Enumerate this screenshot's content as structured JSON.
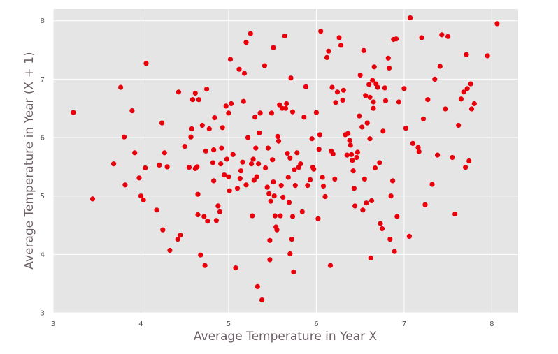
{
  "chart_data": {
    "type": "scatter",
    "xlabel": "Average Temperature in Year X",
    "ylabel": "Average Temperature in Year (X + 1)",
    "xlim": [
      3,
      8.3
    ],
    "ylim": [
      3,
      8.2
    ],
    "xticks": [
      "3",
      "4",
      "5",
      "6",
      "7",
      "8"
    ],
    "yticks": [
      "3",
      "4",
      "5",
      "6",
      "7",
      "8"
    ],
    "grid": true,
    "background_color": "#e5e5e5",
    "grid_color": "#ffffff",
    "marker_color": "#e8000b",
    "series": [
      {
        "points": [
          [
            3.23,
            6.43
          ],
          [
            3.45,
            4.95
          ],
          [
            3.69,
            5.55
          ],
          [
            3.77,
            6.86
          ],
          [
            3.81,
            6.01
          ],
          [
            3.82,
            5.19
          ],
          [
            3.9,
            6.46
          ],
          [
            3.93,
            5.74
          ],
          [
            3.98,
            5.31
          ],
          [
            4.0,
            5.0
          ],
          [
            4.03,
            4.93
          ],
          [
            4.05,
            5.48
          ],
          [
            4.06,
            7.27
          ],
          [
            4.18,
            4.76
          ],
          [
            4.21,
            5.53
          ],
          [
            4.24,
            6.25
          ],
          [
            4.25,
            4.42
          ],
          [
            4.27,
            5.74
          ],
          [
            4.3,
            5.5
          ],
          [
            4.33,
            4.07
          ],
          [
            4.42,
            4.26
          ],
          [
            4.43,
            6.78
          ],
          [
            4.45,
            4.33
          ],
          [
            4.5,
            5.85
          ],
          [
            4.55,
            5.49
          ],
          [
            4.57,
            6.01
          ],
          [
            4.58,
            6.15
          ],
          [
            4.59,
            6.65
          ],
          [
            4.62,
            5.47
          ],
          [
            4.62,
            6.76
          ],
          [
            4.64,
            5.5
          ],
          [
            4.65,
            5.03
          ],
          [
            4.65,
            4.68
          ],
          [
            4.66,
            6.65
          ],
          [
            4.68,
            3.99
          ],
          [
            4.7,
            6.21
          ],
          [
            4.72,
            4.65
          ],
          [
            4.73,
            3.81
          ],
          [
            4.74,
            5.77
          ],
          [
            4.75,
            6.83
          ],
          [
            4.76,
            4.57
          ],
          [
            4.78,
            6.15
          ],
          [
            4.82,
            5.57
          ],
          [
            4.83,
            5.79
          ],
          [
            4.83,
            5.26
          ],
          [
            4.84,
            6.34
          ],
          [
            4.86,
            4.58
          ],
          [
            4.88,
            4.83
          ],
          [
            4.9,
            4.73
          ],
          [
            4.91,
            5.55
          ],
          [
            4.92,
            5.82
          ],
          [
            4.93,
            6.17
          ],
          [
            4.95,
            5.36
          ],
          [
            4.97,
            6.54
          ],
          [
            4.98,
            5.63
          ],
          [
            5.0,
            6.42
          ],
          [
            5.0,
            5.33
          ],
          [
            5.01,
            5.09
          ],
          [
            5.02,
            7.34
          ],
          [
            5.03,
            6.58
          ],
          [
            5.05,
            5.71
          ],
          [
            5.08,
            3.77
          ],
          [
            5.1,
            5.13
          ],
          [
            5.12,
            7.17
          ],
          [
            5.13,
            5.3
          ],
          [
            5.14,
            5.43
          ],
          [
            5.16,
            5.58
          ],
          [
            5.17,
            6.62
          ],
          [
            5.18,
            7.1
          ],
          [
            5.2,
            7.63
          ],
          [
            5.2,
            5.19
          ],
          [
            5.22,
            6.0
          ],
          [
            5.25,
            7.78
          ],
          [
            5.26,
            5.55
          ],
          [
            5.27,
            4.66
          ],
          [
            5.28,
            5.63
          ],
          [
            5.29,
            5.27
          ],
          [
            5.3,
            6.35
          ],
          [
            5.31,
            5.82
          ],
          [
            5.32,
            5.33
          ],
          [
            5.33,
            3.45
          ],
          [
            5.34,
            5.55
          ],
          [
            5.35,
            6.08
          ],
          [
            5.36,
            6.42
          ],
          [
            5.38,
            3.22
          ],
          [
            5.41,
            7.23
          ],
          [
            5.42,
            5.48
          ],
          [
            5.44,
            5.15
          ],
          [
            5.45,
            5.82
          ],
          [
            5.46,
            5.04
          ],
          [
            5.47,
            4.24
          ],
          [
            5.47,
            3.91
          ],
          [
            5.48,
            4.91
          ],
          [
            5.49,
            6.42
          ],
          [
            5.5,
            5.62
          ],
          [
            5.51,
            5.24
          ],
          [
            5.51,
            7.54
          ],
          [
            5.52,
            5.0
          ],
          [
            5.53,
            4.66
          ],
          [
            5.54,
            4.47
          ],
          [
            5.55,
            4.42
          ],
          [
            5.56,
            6.02
          ],
          [
            5.57,
            5.94
          ],
          [
            5.58,
            6.56
          ],
          [
            5.59,
            4.66
          ],
          [
            5.6,
            5.18
          ],
          [
            5.61,
            6.5
          ],
          [
            5.62,
            4.98
          ],
          [
            5.64,
            7.74
          ],
          [
            5.65,
            6.5
          ],
          [
            5.66,
            6.58
          ],
          [
            5.67,
            5.73
          ],
          [
            5.68,
            5.32
          ],
          [
            5.69,
            4.89
          ],
          [
            5.7,
            4.01
          ],
          [
            5.7,
            5.65
          ],
          [
            5.71,
            7.02
          ],
          [
            5.72,
            4.26
          ],
          [
            5.73,
            6.44
          ],
          [
            5.73,
            4.65
          ],
          [
            5.74,
            3.7
          ],
          [
            5.75,
            5.45
          ],
          [
            5.76,
            5.18
          ],
          [
            5.78,
            5.74
          ],
          [
            5.8,
            5.49
          ],
          [
            5.82,
            5.55
          ],
          [
            5.84,
            4.73
          ],
          [
            5.86,
            6.35
          ],
          [
            5.88,
            6.87
          ],
          [
            5.9,
            5.18
          ],
          [
            5.93,
            5.28
          ],
          [
            5.95,
            5.98
          ],
          [
            5.96,
            5.49
          ],
          [
            5.97,
            5.46
          ],
          [
            6.0,
            6.43
          ],
          [
            6.02,
            4.61
          ],
          [
            6.03,
            5.8
          ],
          [
            6.04,
            6.05
          ],
          [
            6.05,
            7.82
          ],
          [
            6.07,
            5.32
          ],
          [
            6.08,
            5.17
          ],
          [
            6.1,
            4.99
          ],
          [
            6.12,
            7.37
          ],
          [
            6.14,
            7.48
          ],
          [
            6.16,
            3.81
          ],
          [
            6.17,
            5.77
          ],
          [
            6.18,
            6.86
          ],
          [
            6.19,
            5.72
          ],
          [
            6.21,
            5.29
          ],
          [
            6.22,
            6.6
          ],
          [
            6.24,
            6.78
          ],
          [
            6.26,
            7.71
          ],
          [
            6.28,
            7.58
          ],
          [
            6.3,
            6.64
          ],
          [
            6.31,
            6.81
          ],
          [
            6.33,
            6.05
          ],
          [
            6.35,
            5.7
          ],
          [
            6.36,
            6.07
          ],
          [
            6.38,
            5.95
          ],
          [
            6.39,
            5.87
          ],
          [
            6.4,
            5.71
          ],
          [
            6.41,
            5.61
          ],
          [
            6.42,
            5.43
          ],
          [
            6.43,
            5.13
          ],
          [
            6.44,
            4.83
          ],
          [
            6.46,
            5.66
          ],
          [
            6.47,
            5.75
          ],
          [
            6.49,
            6.37
          ],
          [
            6.5,
            7.07
          ],
          [
            6.52,
            6.18
          ],
          [
            6.53,
            4.76
          ],
          [
            6.54,
            7.49
          ],
          [
            6.55,
            5.29
          ],
          [
            6.56,
            6.72
          ],
          [
            6.57,
            4.88
          ],
          [
            6.58,
            6.25
          ],
          [
            6.6,
            6.91
          ],
          [
            6.61,
            6.69
          ],
          [
            6.61,
            5.98
          ],
          [
            6.62,
            3.94
          ],
          [
            6.63,
            4.92
          ],
          [
            6.64,
            6.98
          ],
          [
            6.65,
            6.61
          ],
          [
            6.65,
            6.5
          ],
          [
            6.66,
            7.21
          ],
          [
            6.67,
            5.48
          ],
          [
            6.68,
            6.92
          ],
          [
            6.7,
            6.86
          ],
          [
            6.72,
            5.57
          ],
          [
            6.73,
            4.53
          ],
          [
            6.75,
            4.44
          ],
          [
            6.76,
            6.11
          ],
          [
            6.78,
            6.85
          ],
          [
            6.79,
            6.63
          ],
          [
            6.82,
            7.36
          ],
          [
            6.83,
            7.19
          ],
          [
            6.84,
            4.26
          ],
          [
            6.85,
            5.0
          ],
          [
            6.87,
            5.26
          ],
          [
            6.88,
            7.68
          ],
          [
            6.89,
            4.05
          ],
          [
            6.91,
            7.69
          ],
          [
            6.92,
            4.65
          ],
          [
            6.94,
            6.61
          ],
          [
            7.0,
            6.84
          ],
          [
            7.02,
            6.16
          ],
          [
            7.06,
            4.31
          ],
          [
            7.07,
            8.05
          ],
          [
            7.1,
            5.9
          ],
          [
            7.16,
            5.83
          ],
          [
            7.17,
            5.76
          ],
          [
            7.2,
            7.71
          ],
          [
            7.22,
            6.32
          ],
          [
            7.24,
            4.85
          ],
          [
            7.27,
            6.65
          ],
          [
            7.32,
            5.2
          ],
          [
            7.35,
            7.0
          ],
          [
            7.38,
            5.7
          ],
          [
            7.41,
            7.22
          ],
          [
            7.43,
            7.76
          ],
          [
            7.47,
            6.49
          ],
          [
            7.5,
            7.73
          ],
          [
            7.55,
            5.66
          ],
          [
            7.58,
            4.69
          ],
          [
            7.62,
            6.21
          ],
          [
            7.65,
            6.66
          ],
          [
            7.68,
            6.78
          ],
          [
            7.7,
            5.49
          ],
          [
            7.71,
            7.42
          ],
          [
            7.72,
            6.84
          ],
          [
            7.74,
            5.6
          ],
          [
            7.76,
            6.92
          ],
          [
            7.77,
            6.49
          ],
          [
            7.8,
            6.58
          ],
          [
            7.95,
            7.4
          ],
          [
            8.06,
            7.95
          ]
        ]
      }
    ]
  }
}
